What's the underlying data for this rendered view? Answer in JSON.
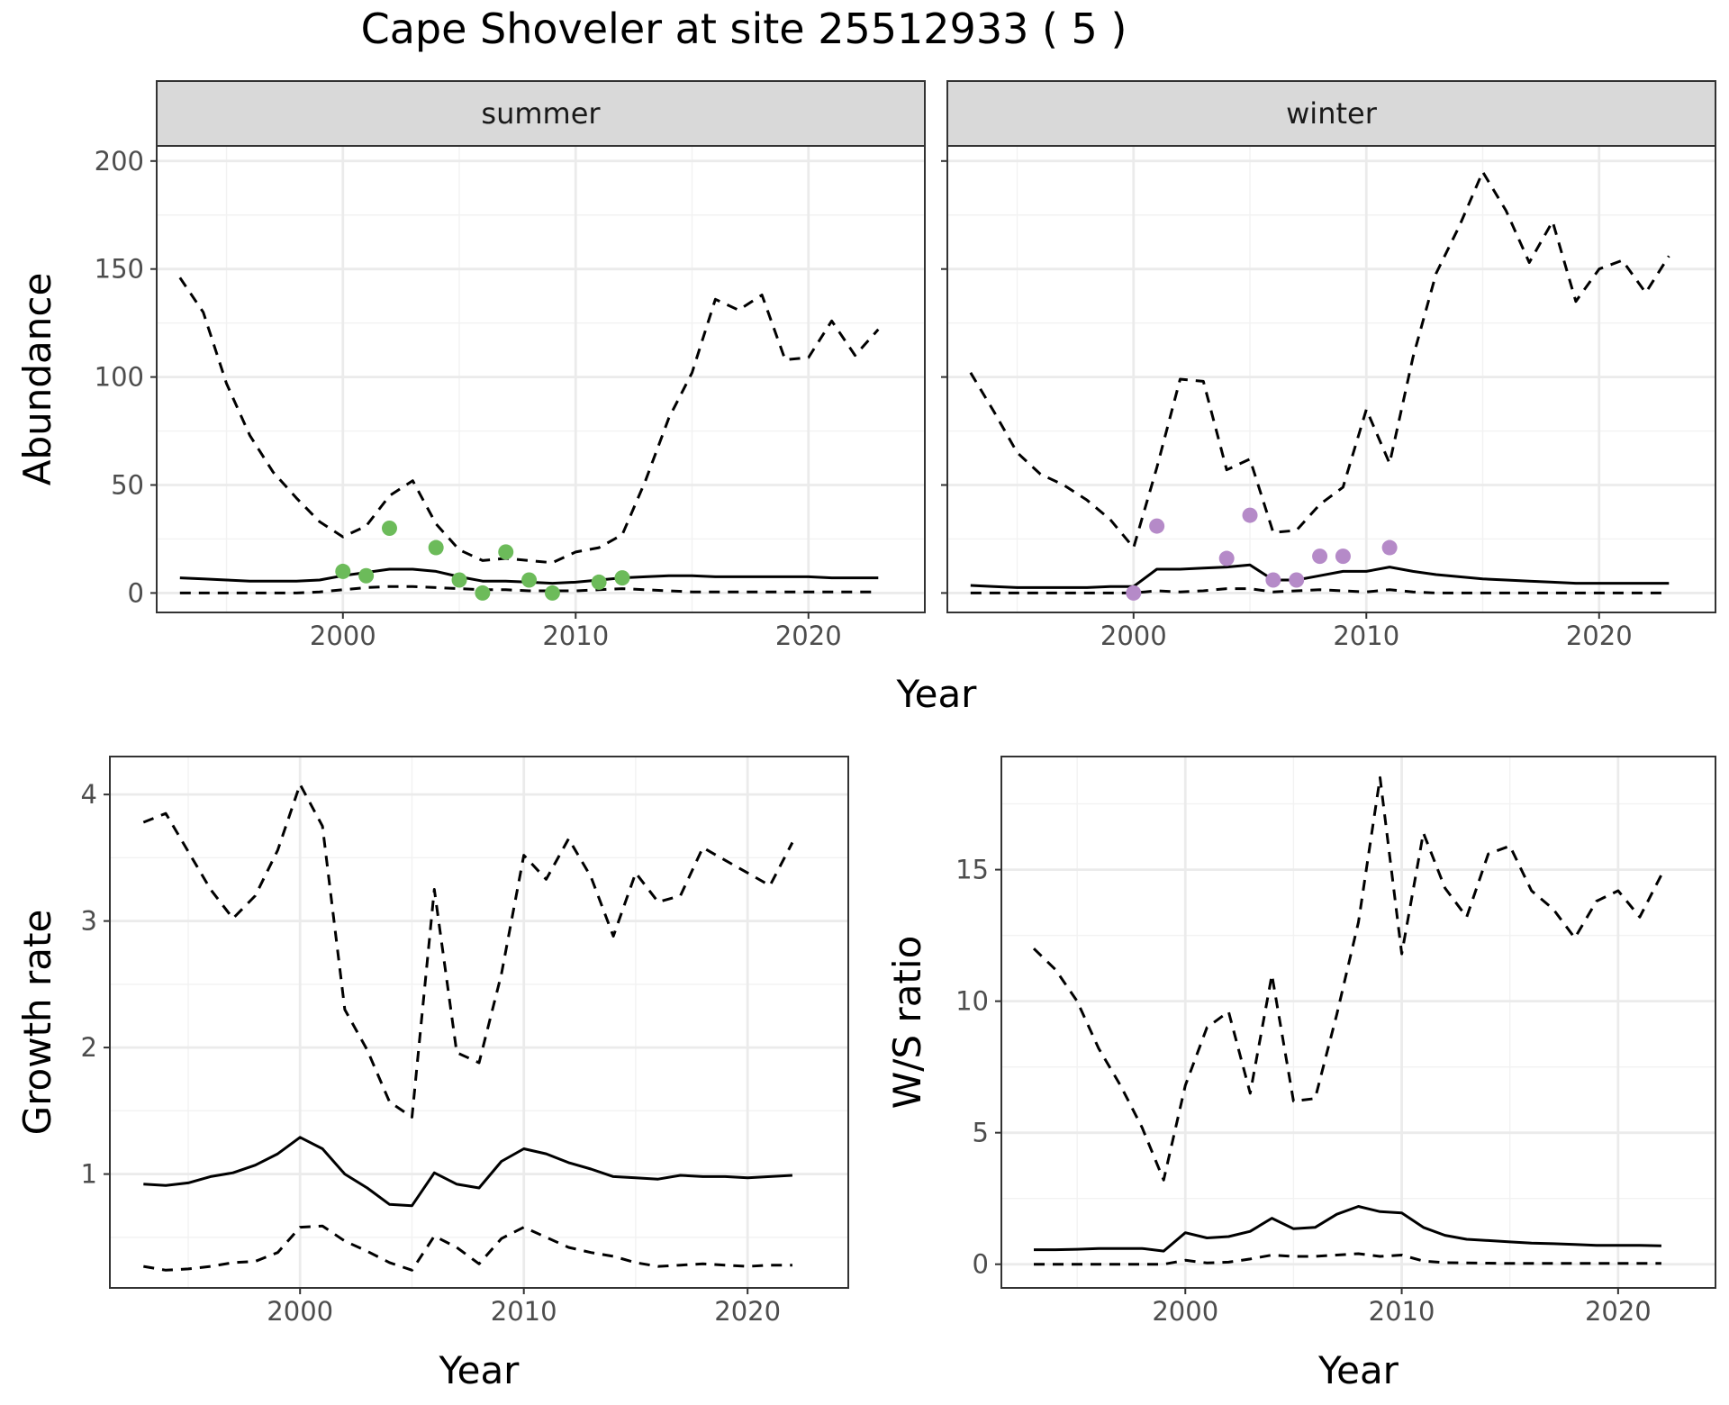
{
  "title": "Cape Shoveler at site 25512933 ( 5 )",
  "colors": {
    "summer_points": "#6cbb5a",
    "winter_points": "#b58ac8",
    "line": "#000000",
    "grid_major": "#ebebeb",
    "grid_minor": "#f2f2f2",
    "strip_fill": "#d9d9d9",
    "panel_border": "#333333"
  },
  "chart_data": [
    {
      "type": "line",
      "facets": [
        "summer",
        "winter"
      ],
      "xlabel": "Year",
      "ylabel": "Abundance",
      "xlim": [
        1992,
        2025
      ],
      "ylim": [
        -9,
        207
      ],
      "xticks": [
        2000,
        2010,
        2020
      ],
      "yticks": [
        0,
        50,
        100,
        150,
        200
      ],
      "grid": true,
      "panels": [
        {
          "facet": "summer",
          "x": [
            1993,
            1994,
            1995,
            1996,
            1997,
            1998,
            1999,
            2000,
            2001,
            2002,
            2003,
            2004,
            2005,
            2006,
            2007,
            2008,
            2009,
            2010,
            2011,
            2012,
            2013,
            2014,
            2015,
            2016,
            2017,
            2018,
            2019,
            2020,
            2021,
            2022,
            2023
          ],
          "mean": [
            7,
            6.5,
            6,
            5.5,
            5.5,
            5.5,
            6,
            8,
            9.5,
            11,
            11,
            10,
            7.5,
            5.5,
            5.5,
            5,
            4.5,
            5,
            6,
            7,
            7.5,
            8,
            8,
            7.5,
            7.5,
            7.5,
            7.5,
            7.5,
            7,
            7,
            7
          ],
          "upper": [
            146,
            130,
            97,
            73,
            56,
            44,
            33,
            26,
            31,
            45,
            52,
            32,
            20,
            15,
            16,
            15,
            14,
            19,
            21,
            27,
            52,
            81,
            102,
            136,
            131,
            138,
            108,
            109,
            126,
            110,
            122
          ],
          "lower": [
            0,
            0,
            0,
            0,
            0,
            0,
            0.5,
            1.5,
            2.5,
            3,
            3,
            2.5,
            2,
            1.5,
            1.5,
            1,
            1,
            1,
            1.5,
            2,
            1.5,
            1,
            0.5,
            0.5,
            0.5,
            0.5,
            0.5,
            0.5,
            0.5,
            0.5,
            0.5
          ],
          "points": {
            "x": [
              2000,
              2001,
              2002,
              2004,
              2005,
              2006,
              2007,
              2008,
              2009,
              2011,
              2012
            ],
            "y": [
              10,
              8,
              30,
              21,
              6,
              0,
              19,
              6,
              0,
              5,
              7
            ]
          }
        },
        {
          "facet": "winter",
          "x": [
            1993,
            1994,
            1995,
            1996,
            1997,
            1998,
            1999,
            2000,
            2001,
            2002,
            2003,
            2004,
            2005,
            2006,
            2007,
            2008,
            2009,
            2010,
            2011,
            2012,
            2013,
            2014,
            2015,
            2016,
            2017,
            2018,
            2019,
            2020,
            2021,
            2022,
            2023
          ],
          "mean": [
            3.5,
            3,
            2.5,
            2.5,
            2.5,
            2.5,
            3,
            3,
            11,
            11,
            11.5,
            12,
            13,
            6,
            6,
            8,
            10,
            10,
            12,
            10,
            8.5,
            7.5,
            6.5,
            6,
            5.5,
            5,
            4.5,
            4.5,
            4.5,
            4.5,
            4.5
          ],
          "upper": [
            102,
            84,
            65,
            55,
            50,
            43,
            34,
            21,
            58,
            99,
            98,
            57,
            62,
            28,
            29,
            41,
            49,
            85,
            60,
            109,
            148,
            170,
            195,
            177,
            153,
            172,
            135,
            150,
            154,
            139,
            156
          ],
          "lower": [
            0,
            0,
            0,
            0,
            0,
            0,
            0,
            0,
            1,
            0.5,
            1,
            2,
            2,
            0.5,
            1,
            1.5,
            1,
            0.5,
            1.5,
            0.5,
            0,
            0,
            0,
            0,
            0,
            0,
            0,
            0,
            0,
            0,
            0
          ],
          "points": {
            "x": [
              2000,
              2001,
              2004,
              2005,
              2006,
              2007,
              2008,
              2009,
              2011
            ],
            "y": [
              0,
              31,
              16,
              36,
              6,
              6,
              17,
              17,
              21
            ]
          }
        }
      ]
    },
    {
      "type": "line",
      "xlabel": "Year",
      "ylabel": "Growth rate",
      "xlim": [
        1991.5,
        2024.5
      ],
      "ylim": [
        0.1,
        4.3
      ],
      "xticks": [
        2000,
        2010,
        2020
      ],
      "yticks": [
        1,
        2,
        3,
        4
      ],
      "grid": true,
      "x": [
        1993,
        1994,
        1995,
        1996,
        1997,
        1998,
        1999,
        2000,
        2001,
        2002,
        2003,
        2004,
        2005,
        2006,
        2007,
        2008,
        2009,
        2010,
        2011,
        2012,
        2013,
        2014,
        2015,
        2016,
        2017,
        2018,
        2019,
        2020,
        2021,
        2022
      ],
      "mean": [
        0.92,
        0.91,
        0.93,
        0.98,
        1.01,
        1.07,
        1.16,
        1.29,
        1.2,
        1,
        0.89,
        0.76,
        0.75,
        1.01,
        0.92,
        0.89,
        1.1,
        1.2,
        1.16,
        1.09,
        1.04,
        0.98,
        0.97,
        0.96,
        0.99,
        0.98,
        0.98,
        0.97,
        0.98,
        0.99
      ],
      "upper": [
        3.78,
        3.85,
        3.55,
        3.25,
        3.02,
        3.2,
        3.56,
        4.08,
        3.75,
        2.3,
        1.98,
        1.57,
        1.45,
        3.25,
        1.96,
        1.88,
        2.58,
        3.52,
        3.33,
        3.65,
        3.35,
        2.88,
        3.38,
        3.15,
        3.2,
        3.58,
        3.48,
        3.38,
        3.28,
        3.62
      ],
      "lower": [
        0.27,
        0.24,
        0.25,
        0.27,
        0.3,
        0.31,
        0.38,
        0.58,
        0.59,
        0.47,
        0.39,
        0.3,
        0.24,
        0.51,
        0.42,
        0.29,
        0.49,
        0.58,
        0.5,
        0.42,
        0.38,
        0.35,
        0.3,
        0.27,
        0.28,
        0.29,
        0.28,
        0.27,
        0.28,
        0.28
      ]
    },
    {
      "type": "line",
      "xlabel": "Year",
      "ylabel": "W/S ratio",
      "xlim": [
        1991.5,
        2024.5
      ],
      "ylim": [
        -0.9,
        19.3
      ],
      "xticks": [
        2000,
        2010,
        2020
      ],
      "yticks": [
        0,
        5,
        10,
        15
      ],
      "grid": true,
      "x": [
        1993,
        1994,
        1995,
        1996,
        1997,
        1998,
        1999,
        2000,
        2001,
        2002,
        2003,
        2004,
        2005,
        2006,
        2007,
        2008,
        2009,
        2010,
        2011,
        2012,
        2013,
        2014,
        2015,
        2016,
        2017,
        2018,
        2019,
        2020,
        2021,
        2022
      ],
      "mean": [
        0.55,
        0.55,
        0.57,
        0.6,
        0.6,
        0.6,
        0.5,
        1.2,
        1,
        1.05,
        1.25,
        1.75,
        1.35,
        1.4,
        1.9,
        2.2,
        2,
        1.95,
        1.4,
        1.1,
        0.95,
        0.9,
        0.85,
        0.8,
        0.78,
        0.75,
        0.72,
        0.72,
        0.72,
        0.7
      ],
      "upper": [
        12,
        11.2,
        10,
        8.2,
        6.8,
        5.2,
        3.2,
        6.8,
        9,
        9.6,
        6.5,
        11,
        6.2,
        6.3,
        9.5,
        13,
        18.5,
        11.8,
        16.4,
        14.3,
        13.2,
        15.6,
        15.9,
        14.2,
        13.5,
        12.4,
        13.8,
        14.2,
        13.2,
        14.8
      ],
      "lower": [
        0,
        0,
        0,
        0,
        0,
        0,
        0,
        0.15,
        0.05,
        0.08,
        0.2,
        0.35,
        0.3,
        0.3,
        0.35,
        0.4,
        0.3,
        0.35,
        0.12,
        0.06,
        0.05,
        0.04,
        0.03,
        0.03,
        0.03,
        0.03,
        0.03,
        0.03,
        0.03,
        0.03
      ]
    }
  ]
}
